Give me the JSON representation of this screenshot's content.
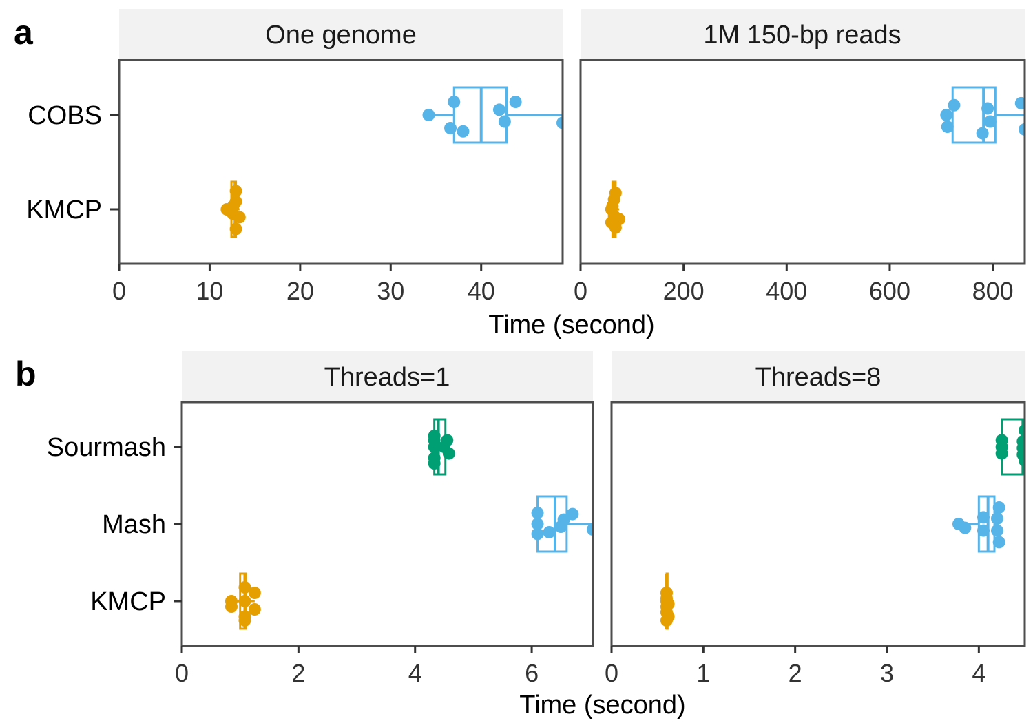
{
  "colors": {
    "KMCP": "#E69F00",
    "COBS": "#56B4E9",
    "Mash": "#56B4E9",
    "Sourmash": "#009E73",
    "strip_fill": "#F2F2F2",
    "panel_border": "#4D4D4D",
    "axis_text": "#333333",
    "label_text": "#000000"
  },
  "chart_data": [
    {
      "type": "box+jitter",
      "tag": "a",
      "xlabel": "Time (second)",
      "categories": [
        "COBS",
        "KMCP"
      ],
      "panels": [
        {
          "strip": "One genome",
          "xlim": [
            0,
            49
          ],
          "ticks": [
            0,
            10,
            20,
            30,
            40
          ],
          "series": [
            {
              "name": "COBS",
              "points": [
                [
                  34.2,
                  0.0
                ],
                [
                  37.0,
                  -0.2
                ],
                [
                  36.6,
                  0.2
                ],
                [
                  38.0,
                  0.25
                ],
                [
                  42.0,
                  -0.08
                ],
                [
                  43.8,
                  -0.2
                ],
                [
                  42.6,
                  0.1
                ],
                [
                  49.0,
                  0.12
                ]
              ],
              "box": {
                "q1": 37.0,
                "median": 40.0,
                "q3": 42.8,
                "whisker_low": 34.2,
                "whisker_high": 49.0
              }
            },
            {
              "name": "KMCP",
              "points": [
                [
                  12.9,
                  -0.28
                ],
                [
                  12.9,
                  -0.12
                ],
                [
                  12.6,
                  -0.05
                ],
                [
                  11.9,
                  0.0
                ],
                [
                  12.3,
                  0.03
                ],
                [
                  12.6,
                  0.07
                ],
                [
                  13.3,
                  0.12
                ],
                [
                  12.9,
                  0.3
                ]
              ],
              "box": {
                "q1": 12.4,
                "median": 12.8,
                "q3": 12.9,
                "whisker_low": 11.9,
                "whisker_high": 13.3
              }
            }
          ]
        },
        {
          "strip": "1M 150-bp reads",
          "xlim": [
            0,
            862
          ],
          "ticks": [
            0,
            200,
            400,
            600,
            800
          ],
          "series": [
            {
              "name": "COBS",
              "points": [
                [
                  725,
                  -0.15
                ],
                [
                  710,
                  0.0
                ],
                [
                  712,
                  0.18
                ],
                [
                  780,
                  0.28
                ],
                [
                  790,
                  -0.1
                ],
                [
                  795,
                  0.1
                ],
                [
                  855,
                  -0.18
                ],
                [
                  862,
                  0.22
                ]
              ],
              "box": {
                "q1": 722,
                "median": 782,
                "q3": 805,
                "whisker_low": 710,
                "whisker_high": 862
              }
            },
            {
              "name": "KMCP",
              "points": [
                [
                  68,
                  -0.25
                ],
                [
                  65,
                  -0.15
                ],
                [
                  62,
                  -0.05
                ],
                [
                  60,
                  0.0
                ],
                [
                  65,
                  0.1
                ],
                [
                  75,
                  0.15
                ],
                [
                  60,
                  0.2
                ],
                [
                  68,
                  0.28
                ]
              ],
              "box": {
                "q1": 62,
                "median": 65,
                "q3": 68,
                "whisker_low": 60,
                "whisker_high": 75
              }
            }
          ]
        }
      ]
    },
    {
      "type": "box+jitter",
      "tag": "b",
      "xlabel": "Time (second)",
      "categories": [
        "Sourmash",
        "Mash",
        "KMCP"
      ],
      "panels": [
        {
          "strip": "Threads=1",
          "xlim": [
            0,
            7.05
          ],
          "ticks": [
            0,
            2,
            4,
            6
          ],
          "series": [
            {
              "name": "Sourmash",
              "points": [
                [
                  4.33,
                  -0.2
                ],
                [
                  4.33,
                  -0.12
                ],
                [
                  4.55,
                  -0.12
                ],
                [
                  4.33,
                  0.0
                ],
                [
                  4.5,
                  0.0
                ],
                [
                  4.58,
                  0.12
                ],
                [
                  4.33,
                  0.2
                ],
                [
                  4.33,
                  0.3
                ]
              ],
              "box": {
                "q1": 4.33,
                "median": 4.4,
                "q3": 4.52,
                "whisker_low": 4.33,
                "whisker_high": 4.58
              }
            },
            {
              "name": "Mash",
              "points": [
                [
                  6.1,
                  -0.2
                ],
                [
                  6.1,
                  0.0
                ],
                [
                  6.1,
                  0.18
                ],
                [
                  6.3,
                  0.15
                ],
                [
                  6.5,
                  0.05
                ],
                [
                  6.55,
                  -0.08
                ],
                [
                  6.7,
                  -0.18
                ],
                [
                  7.05,
                  0.1
                ]
              ],
              "box": {
                "q1": 6.1,
                "median": 6.4,
                "q3": 6.6,
                "whisker_low": 6.1,
                "whisker_high": 7.05
              }
            },
            {
              "name": "KMCP",
              "points": [
                [
                  1.08,
                  -0.25
                ],
                [
                  1.25,
                  -0.15
                ],
                [
                  0.85,
                  0.0
                ],
                [
                  1.08,
                  0.0
                ],
                [
                  0.85,
                  0.1
                ],
                [
                  1.25,
                  0.15
                ],
                [
                  1.08,
                  0.28
                ],
                [
                  1.08,
                  0.35
                ]
              ],
              "box": {
                "q1": 1.0,
                "median": 1.08,
                "q3": 1.1,
                "whisker_low": 0.85,
                "whisker_high": 1.25
              }
            }
          ]
        },
        {
          "strip": "Threads=8",
          "xlim": [
            0,
            4.5
          ],
          "ticks": [
            0,
            1,
            2,
            3,
            4
          ],
          "series": [
            {
              "name": "Sourmash",
              "points": [
                [
                  4.5,
                  -0.3
                ],
                [
                  4.25,
                  -0.12
                ],
                [
                  4.48,
                  -0.1
                ],
                [
                  4.25,
                  0.0
                ],
                [
                  4.48,
                  0.02
                ],
                [
                  4.25,
                  0.12
                ],
                [
                  4.48,
                  0.14
                ],
                [
                  4.5,
                  0.25
                ]
              ],
              "box": {
                "q1": 4.25,
                "median": 4.48,
                "q3": 4.5,
                "whisker_low": 4.25,
                "whisker_high": 4.5
              }
            },
            {
              "name": "Mash",
              "points": [
                [
                  4.22,
                  -0.3
                ],
                [
                  4.05,
                  -0.12
                ],
                [
                  4.2,
                  -0.1
                ],
                [
                  3.78,
                  0.0
                ],
                [
                  3.85,
                  0.07
                ],
                [
                  4.05,
                  0.12
                ],
                [
                  4.2,
                  0.12
                ],
                [
                  4.22,
                  0.33
                ]
              ],
              "box": {
                "q1": 4.0,
                "median": 4.1,
                "q3": 4.17,
                "whisker_low": 3.78,
                "whisker_high": 4.22
              }
            },
            {
              "name": "KMCP",
              "points": [
                [
                  0.6,
                  -0.15
                ],
                [
                  0.6,
                  -0.05
                ],
                [
                  0.6,
                  0.1
                ],
                [
                  0.6,
                  0.2
                ],
                [
                  0.62,
                  0.28
                ],
                [
                  0.62,
                  0.05
                ],
                [
                  0.6,
                  0.0
                ],
                [
                  0.6,
                  0.35
                ]
              ],
              "box": {
                "q1": 0.6,
                "median": 0.6,
                "q3": 0.61,
                "whisker_low": 0.6,
                "whisker_high": 0.62
              }
            }
          ]
        }
      ]
    }
  ]
}
